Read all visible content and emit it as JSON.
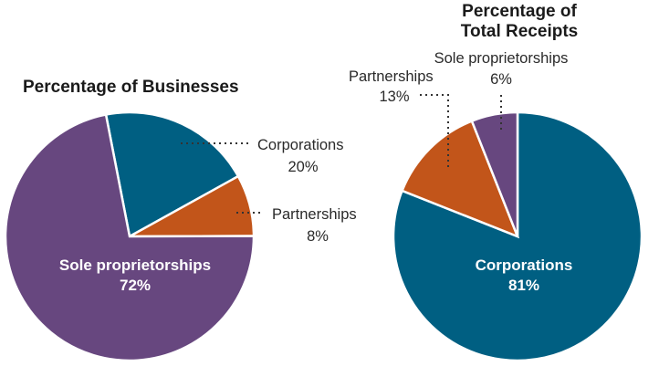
{
  "colors": {
    "sole_proprietorships": "#67477f",
    "corporations": "#005f82",
    "partnerships": "#c2551a"
  },
  "chart_data": [
    {
      "type": "pie",
      "title": "Percentage of Businesses",
      "slices": [
        {
          "label": "Sole proprietorships",
          "value": 72,
          "display": "72%"
        },
        {
          "label": "Corporations",
          "value": 20,
          "display": "20%"
        },
        {
          "label": "Partnerships",
          "value": 8,
          "display": "8%"
        }
      ]
    },
    {
      "type": "pie",
      "title_lines": [
        "Percentage of",
        "Total Receipts"
      ],
      "slices": [
        {
          "label": "Corporations",
          "value": 81,
          "display": "81%"
        },
        {
          "label": "Partnerships",
          "value": 13,
          "display": "13%"
        },
        {
          "label": "Sole proprietorships",
          "value": 6,
          "display": "6%"
        }
      ]
    }
  ]
}
